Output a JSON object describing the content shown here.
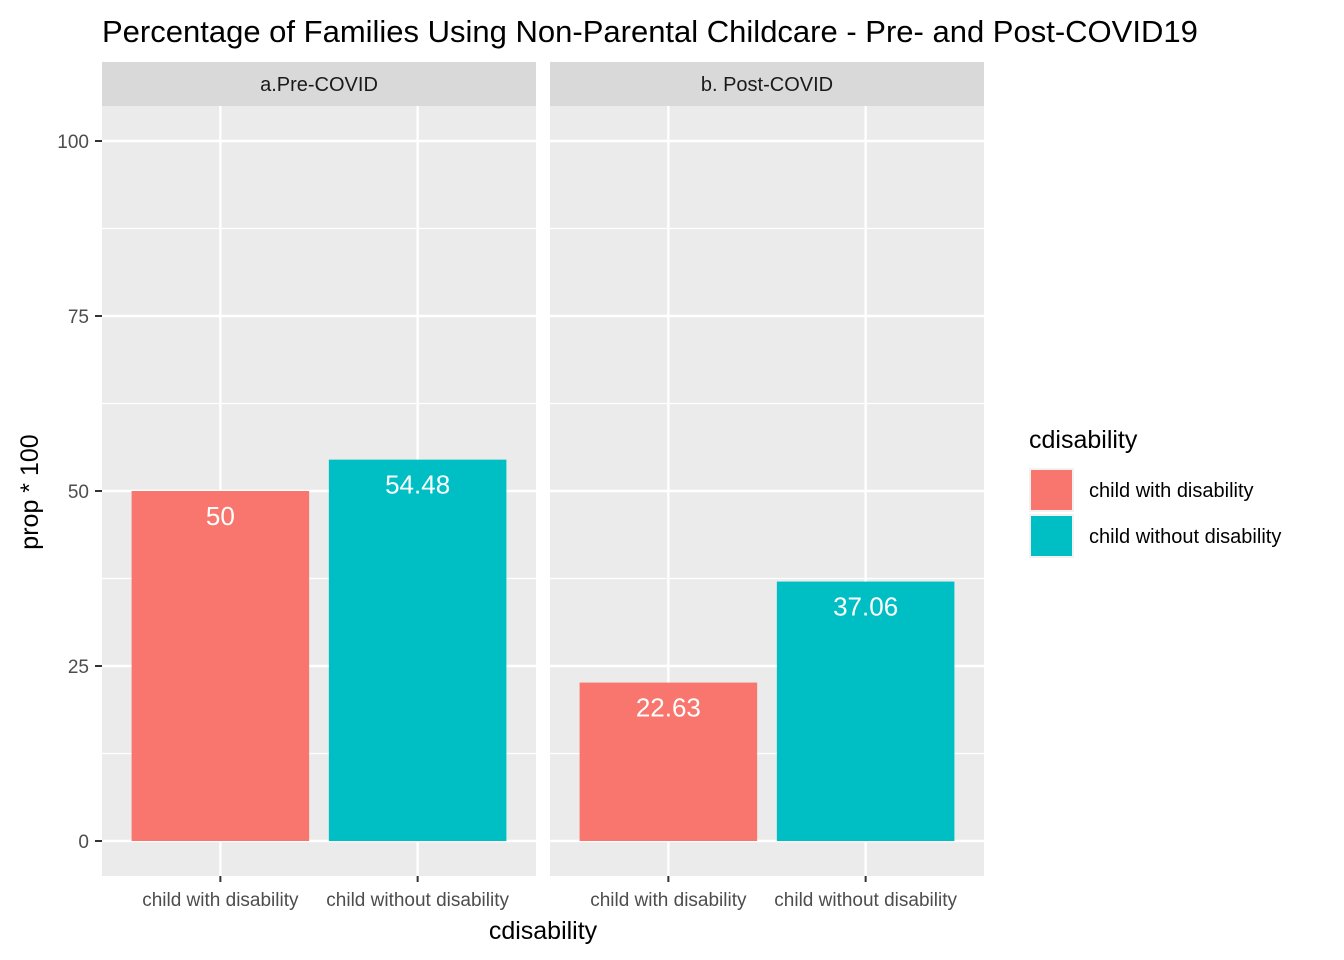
{
  "chart_data": {
    "type": "bar",
    "title": "Percentage of Families Using Non-Parental Childcare - Pre- and Post-COVID19",
    "xlabel": "cdisability",
    "ylabel": "prop * 100",
    "ylim": [
      -5,
      105
    ],
    "yticks": [
      0,
      25,
      50,
      75,
      100
    ],
    "grid": true,
    "categories": [
      "child with disability",
      "child without disability"
    ],
    "facets": [
      {
        "label": "a.Pre-COVID",
        "values": [
          50,
          54.48
        ],
        "labels": [
          "50",
          "54.48"
        ]
      },
      {
        "label": "b. Post-COVID",
        "values": [
          22.63,
          37.06
        ],
        "labels": [
          "22.63",
          "37.06"
        ]
      }
    ],
    "legend": {
      "title": "cdisability",
      "placement": "right",
      "items": [
        {
          "label": "child with disability",
          "color": "#F8766D"
        },
        {
          "label": "child without disability",
          "color": "#00BFC4"
        }
      ]
    }
  }
}
